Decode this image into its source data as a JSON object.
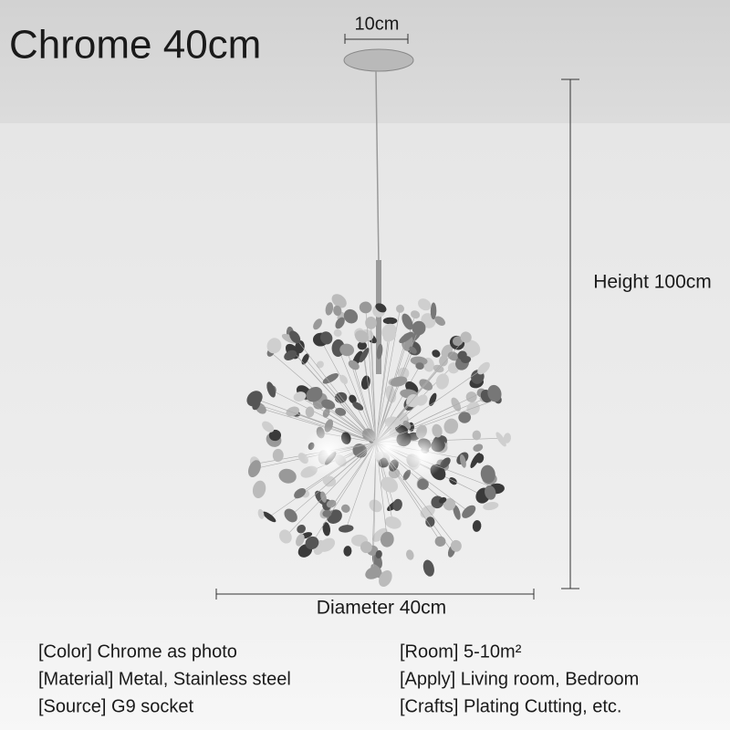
{
  "title": "Chrome 40cm",
  "dimensions": {
    "canopy": "10cm",
    "height": "Height 100cm",
    "diameter": "Diameter 40cm"
  },
  "specs": {
    "left": [
      "[Color] Chrome as photo",
      "[Material] Metal, Stainless steel",
      "[Source] G9 socket"
    ],
    "right": [
      "[Room] 5-10m²",
      "[Apply] Living room, Bedroom",
      "[Crafts] Plating Cutting, etc."
    ]
  }
}
